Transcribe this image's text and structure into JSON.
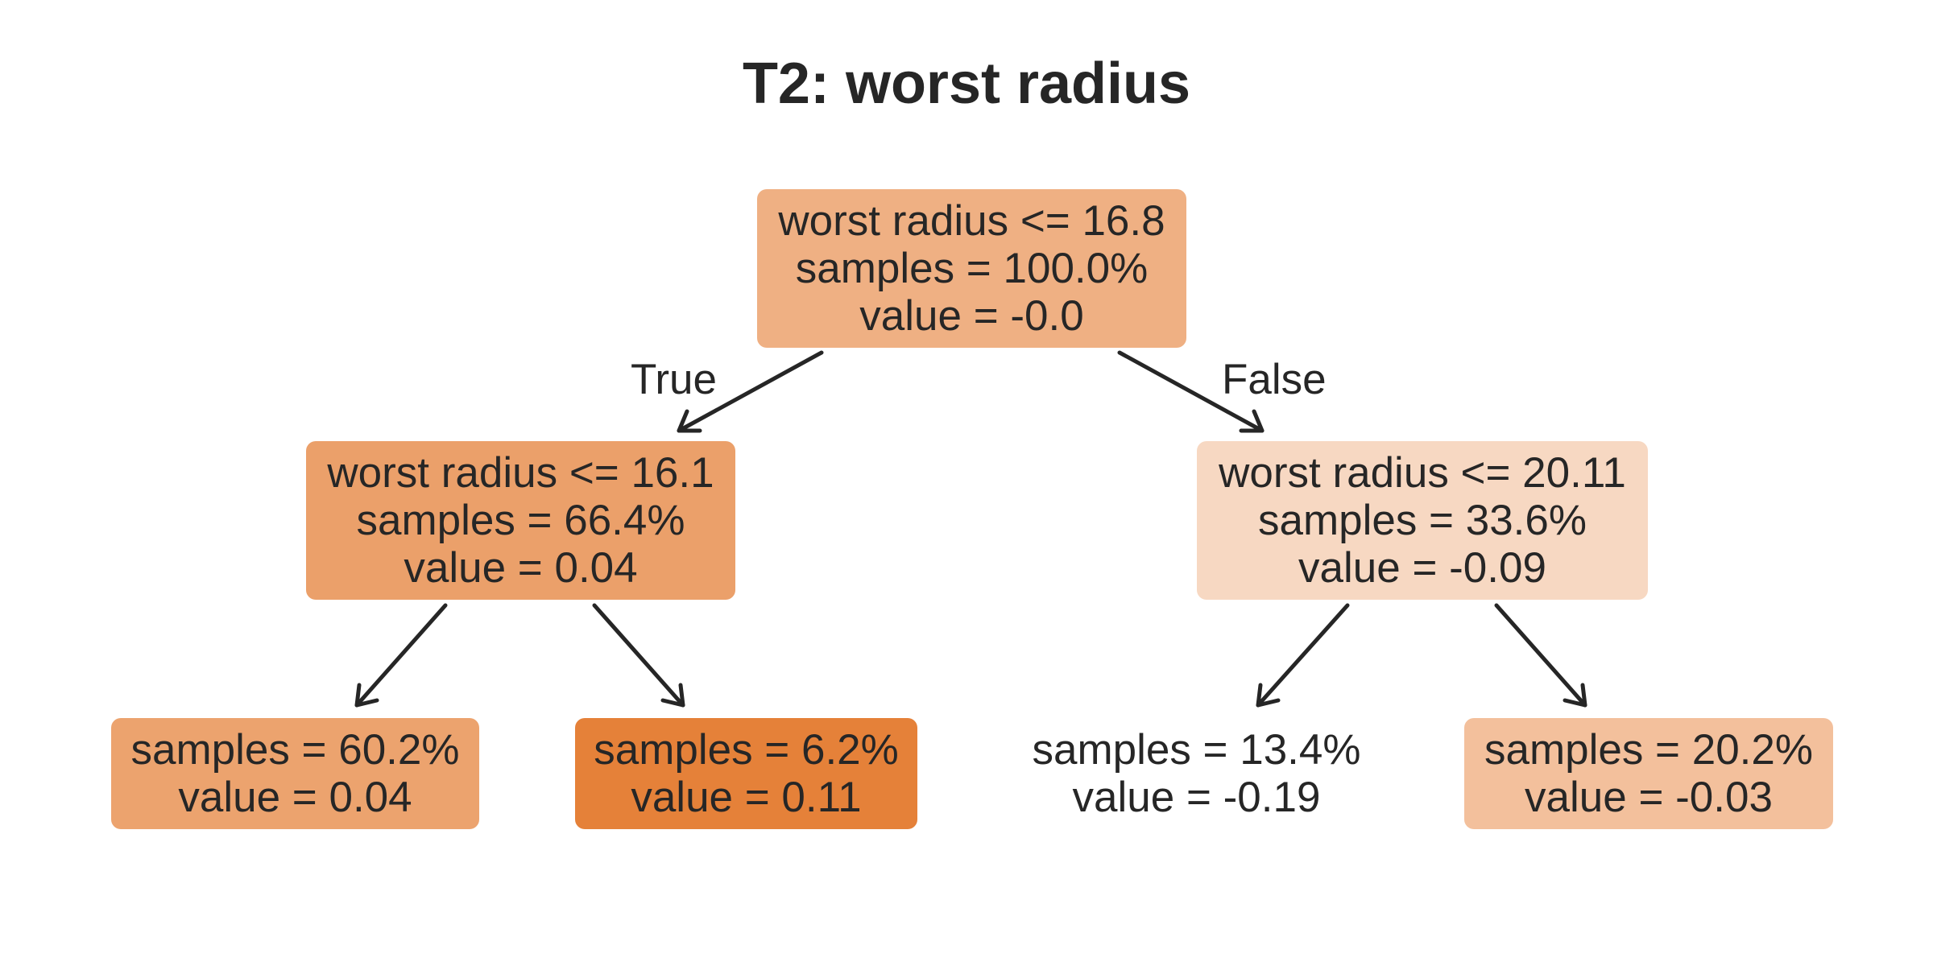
{
  "title": "T2: worst radius",
  "edge_labels": {
    "true": "True",
    "false": "False"
  },
  "nodes": {
    "root": {
      "split": "worst radius <= 16.8",
      "samples": "samples = 100.0%",
      "value": "value = -0.0",
      "color": "#efb083"
    },
    "left": {
      "split": "worst radius <= 16.1",
      "samples": "samples = 66.4%",
      "value": "value = 0.04",
      "color": "#eba06a"
    },
    "right": {
      "split": "worst radius <= 20.11",
      "samples": "samples = 33.6%",
      "value": "value = -0.09",
      "color": "#f7d8c2"
    },
    "leaf_ll": {
      "samples": "samples = 60.2%",
      "value": "value = 0.04",
      "color": "#eca36e"
    },
    "leaf_lr": {
      "samples": "samples = 6.2%",
      "value": "value = 0.11",
      "color": "#e58139"
    },
    "leaf_rl": {
      "samples": "samples = 13.4%",
      "value": "value = -0.19",
      "color": "#ffffff"
    },
    "leaf_rr": {
      "samples": "samples = 20.2%",
      "value": "value = -0.03",
      "color": "#f3c09c"
    }
  }
}
